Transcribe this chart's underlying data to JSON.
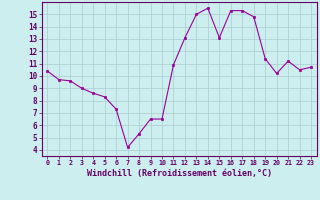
{
  "x": [
    0,
    1,
    2,
    3,
    4,
    5,
    6,
    7,
    8,
    9,
    10,
    11,
    12,
    13,
    14,
    15,
    16,
    17,
    18,
    19,
    20,
    21,
    22,
    23
  ],
  "y": [
    10.4,
    9.7,
    9.6,
    9.0,
    8.6,
    8.3,
    7.3,
    4.2,
    5.3,
    6.5,
    6.5,
    10.9,
    13.1,
    15.0,
    15.5,
    13.1,
    15.3,
    15.3,
    14.8,
    11.4,
    10.2,
    11.2,
    10.5,
    10.7
  ],
  "line_color": "#990099",
  "marker": "s",
  "marker_size": 2,
  "bg_color": "#cceeee",
  "grid_color": "#aacccc",
  "axis_label_color": "#660066",
  "tick_color": "#660066",
  "xlabel": "Windchill (Refroidissement éolien,°C)",
  "ylim": [
    3.5,
    16.0
  ],
  "xlim": [
    -0.5,
    23.5
  ],
  "yticks": [
    4,
    5,
    6,
    7,
    8,
    9,
    10,
    11,
    12,
    13,
    14,
    15
  ],
  "xticks": [
    0,
    1,
    2,
    3,
    4,
    5,
    6,
    7,
    8,
    9,
    10,
    11,
    12,
    13,
    14,
    15,
    16,
    17,
    18,
    19,
    20,
    21,
    22,
    23
  ],
  "border_color": "#660066"
}
